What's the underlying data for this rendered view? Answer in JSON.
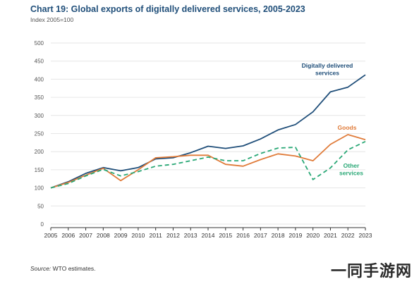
{
  "header": {
    "title": "Chart 19: Global exports of digitally delivered services, 2005-2023",
    "subtitle": "Index 2005=100"
  },
  "source": {
    "label": "Source:",
    "text": " WTO estimates."
  },
  "watermark": "一同手游网",
  "chart_data": {
    "type": "line",
    "x": [
      "2005",
      "2006",
      "2007",
      "2008",
      "2009",
      "2010",
      "2011",
      "2012",
      "2013",
      "2014",
      "2015",
      "2016",
      "2017",
      "2018",
      "2019",
      "2020",
      "2021",
      "2022",
      "2023"
    ],
    "ylim": [
      0,
      500
    ],
    "yticks": [
      0,
      50,
      100,
      150,
      200,
      250,
      300,
      350,
      400,
      450,
      500
    ],
    "grid": true,
    "series": [
      {
        "name": "Digitally delivered services",
        "label_lines": [
          "Digitally delivered",
          "services"
        ],
        "color": "#1f4e79",
        "dash": "none",
        "values": [
          100,
          117,
          140,
          156,
          147,
          156,
          180,
          183,
          197,
          215,
          209,
          216,
          235,
          260,
          275,
          310,
          365,
          378,
          412
        ]
      },
      {
        "name": "Goods",
        "label_lines": [
          "Goods"
        ],
        "color": "#e07b39",
        "dash": "none",
        "values": [
          100,
          115,
          135,
          154,
          120,
          150,
          183,
          186,
          190,
          190,
          165,
          160,
          178,
          194,
          188,
          175,
          220,
          247,
          233
        ]
      },
      {
        "name": "Other services",
        "label_lines": [
          "Other",
          "services"
        ],
        "color": "#2aa876",
        "dash": "6,4",
        "values": [
          100,
          112,
          133,
          151,
          133,
          145,
          160,
          165,
          175,
          185,
          175,
          175,
          195,
          210,
          212,
          123,
          155,
          205,
          228
        ]
      }
    ]
  }
}
